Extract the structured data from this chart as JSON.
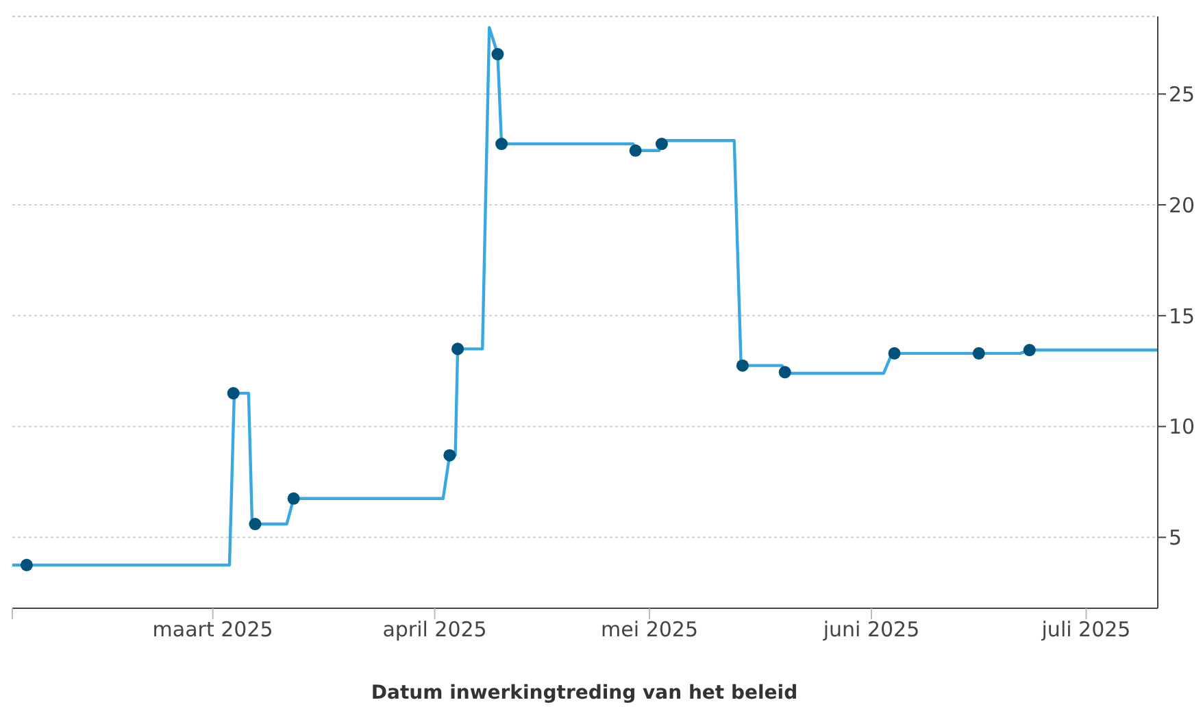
{
  "chart_data": {
    "type": "line",
    "xlabel": "Datum inwerkingtreding van het beleid",
    "xlim": [
      "2025-02-01",
      "2025-07-11"
    ],
    "xticks": [
      {
        "value": "2025-02-01",
        "label": null
      },
      {
        "value": "2025-03-01",
        "label": "maart 2025"
      },
      {
        "value": "2025-04-01",
        "label": "april 2025"
      },
      {
        "value": "2025-05-01",
        "label": "mei 2025"
      },
      {
        "value": "2025-06-01",
        "label": "juni 2025"
      },
      {
        "value": "2025-07-01",
        "label": "juli 2025"
      }
    ],
    "ylim": [
      1.8,
      28.5
    ],
    "yticks": [
      5,
      10,
      15,
      20,
      25
    ],
    "grid": "y",
    "series": [
      {
        "color": "#3aa8e0",
        "marker": "none",
        "x": [
          "2025-02-01",
          "2025-03-03T08:00",
          "2025-03-04",
          "2025-03-06",
          "2025-03-06T12:00",
          "2025-03-11T08:00",
          "2025-03-12T07:00",
          "2025-04-02T04:00",
          "2025-04-03T02:00",
          "2025-04-03T21:00",
          "2025-04-04T05:00",
          "2025-04-07T16:00",
          "2025-04-08T15:00",
          "2025-04-09T19:00",
          "2025-04-10T08:00",
          "2025-04-28T17:00",
          "2025-04-29T01:00",
          "2025-05-02T08:00",
          "2025-05-02T22:00",
          "2025-05-12T20:00",
          "2025-05-13T19:00",
          "2025-05-19T12:00",
          "2025-05-20T02:00",
          "2025-06-02T17:00",
          "2025-06-03T21:00",
          "2025-06-21T19:00",
          "2025-06-23T02:00",
          "2025-07-11"
        ],
        "values": [
          3.75,
          3.75,
          11.5,
          11.5,
          5.6,
          5.6,
          6.75,
          6.75,
          8.7,
          8.7,
          13.5,
          13.5,
          28,
          26.8,
          22.75,
          22.75,
          22.45,
          22.45,
          22.9,
          22.9,
          12.75,
          12.75,
          12.4,
          12.4,
          13.3,
          13.3,
          13.45,
          13.45
        ]
      },
      {
        "type": "scatter",
        "color": "#00527a",
        "marker": "circle",
        "x": [
          "2025-02-03",
          "2025-03-03T21:00",
          "2025-03-06T22:00",
          "2025-03-12T07:00",
          "2025-04-03T02:00",
          "2025-04-04T05:00",
          "2025-04-09T19:00",
          "2025-04-10T08:00",
          "2025-04-29T01:00",
          "2025-05-02T17:00",
          "2025-05-14",
          "2025-05-19T22:00",
          "2025-06-04T05:00",
          "2025-06-16",
          "2025-06-23T02:00"
        ],
        "values": [
          3.75,
          11.5,
          5.6,
          6.75,
          8.7,
          13.5,
          26.8,
          22.75,
          22.45,
          22.75,
          12.75,
          12.45,
          13.3,
          13.3,
          13.45
        ]
      }
    ]
  }
}
